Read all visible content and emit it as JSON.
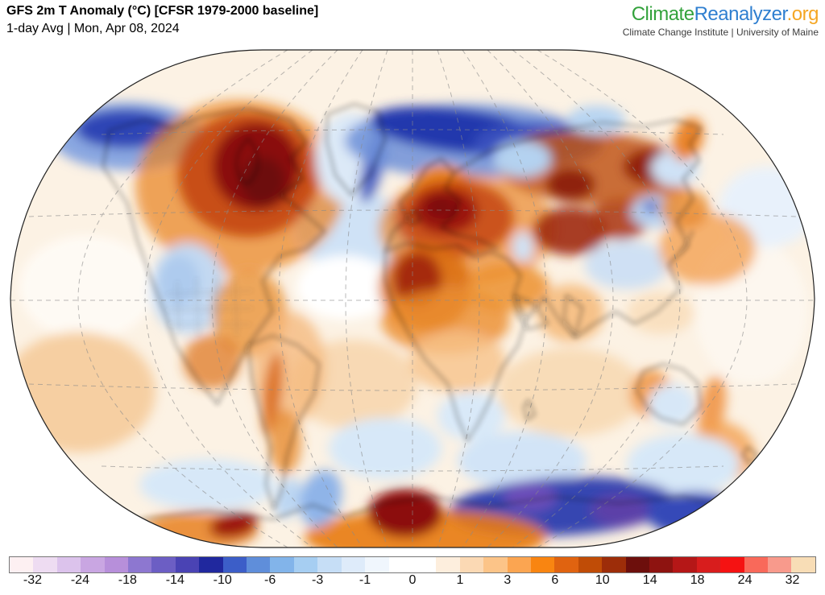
{
  "header": {
    "title": "GFS 2m T Anomaly (°C) [CFSR 1979-2000 baseline]",
    "subtitle": "1-day Avg | Mon, Apr 08, 2024"
  },
  "branding": {
    "logo_part1": "Climate",
    "logo_part2": "Reanalyzer",
    "logo_part3": ".org",
    "logo_colors": {
      "part1": "#33a23c",
      "part2": "#2f7fd0",
      "part3": "#f5a623"
    },
    "tagline": "Climate Change Institute | University of Maine"
  },
  "chart_data": {
    "type": "heatmap",
    "title": "GFS 2m T Anomaly (°C) [CFSR 1979-2000 baseline]",
    "subtitle": "1-day Avg | Mon, Apr 08, 2024",
    "variable": "2 m air temperature anomaly",
    "units": "°C",
    "projection": "global (Winkel-Tripel style) world map",
    "colorbar": {
      "ticks": [
        -32,
        -24,
        -18,
        -14,
        -10,
        -6,
        -3,
        -1,
        0,
        1,
        3,
        6,
        10,
        14,
        18,
        24,
        32
      ],
      "segment_colors": [
        "#fdf0f2",
        "#eedcf2",
        "#dcc3ec",
        "#c9a6e2",
        "#b78fda",
        "#8d77d0",
        "#6c5ec4",
        "#4a43b4",
        "#20289e",
        "#3c5ec8",
        "#5f8eda",
        "#82b4ea",
        "#a6cef2",
        "#c6def6",
        "#deebfa",
        "#f0f6fd",
        "#ffffff",
        "#ffffff",
        "#fdeedd",
        "#fbd9b4",
        "#fcc488",
        "#fba551",
        "#f98511",
        "#e06310",
        "#c04c06",
        "#9d2d09",
        "#6d0f0c",
        "#8e1310",
        "#b51717",
        "#d81d1d",
        "#f51212",
        "#f9695a",
        "#f89a8c",
        "#f8ddb6"
      ]
    },
    "notable_anomalies": [
      {
        "region": "Northern Canada / Hudson Bay",
        "sign": "warm",
        "approx_value_c": "+10 to +18"
      },
      {
        "region": "Central and Eastern Europe",
        "sign": "warm",
        "approx_value_c": "+10 to +16"
      },
      {
        "region": "Northwest Africa / Sahara",
        "sign": "warm",
        "approx_value_c": "+6 to +14"
      },
      {
        "region": "Central Siberia / Central Asia",
        "sign": "warm",
        "approx_value_c": "+6 to +12"
      },
      {
        "region": "Antarctic coast, Atlantic sector",
        "sign": "warm",
        "approx_value_c": "+6 to +14"
      },
      {
        "region": "Western United States",
        "sign": "cool",
        "approx_value_c": "-1 to -6"
      },
      {
        "region": "Arctic Ocean north of Scandinavia",
        "sign": "cold",
        "approx_value_c": "-6 to -14"
      },
      {
        "region": "Bering Strait / Alaska coast",
        "sign": "cold",
        "approx_value_c": "-6 to -12"
      },
      {
        "region": "East Antarctica",
        "sign": "cold",
        "approx_value_c": "-10 to -20"
      },
      {
        "region": "Oceans overall",
        "sign": "warm",
        "approx_value_c": "0 to +3"
      }
    ]
  }
}
